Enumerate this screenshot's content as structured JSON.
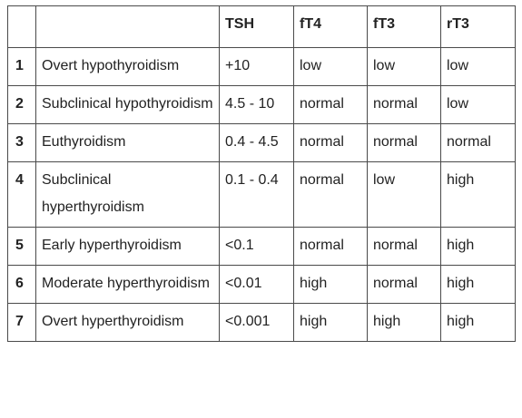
{
  "table": {
    "headers": [
      "",
      "",
      "TSH",
      "fT4",
      "fT3",
      "rT3"
    ],
    "rows": [
      {
        "num": "1",
        "condition": "Overt hypothyroidism",
        "tsh": "+10",
        "ft4": "low",
        "ft3": "low",
        "rt3": "low"
      },
      {
        "num": "2",
        "condition": "Subclinical hypothyroidism",
        "tsh": "4.5 - 10",
        "ft4": "normal",
        "ft3": "normal",
        "rt3": "low"
      },
      {
        "num": "3",
        "condition": "Euthyroidism",
        "tsh": "0.4 - 4.5",
        "ft4": "normal",
        "ft3": "normal",
        "rt3": "normal"
      },
      {
        "num": "4",
        "condition": "Subclinical hyperthyroidism",
        "tsh": "0.1 - 0.4",
        "ft4": "normal",
        "ft3": "low",
        "rt3": "high"
      },
      {
        "num": "5",
        "condition": "Early hyperthyroidism",
        "tsh": "<0.1",
        "ft4": "normal",
        "ft3": "normal",
        "rt3": "high"
      },
      {
        "num": "6",
        "condition": "Moderate hyperthyroidism",
        "tsh": "<0.01",
        "ft4": "high",
        "ft3": "normal",
        "rt3": "high"
      },
      {
        "num": "7",
        "condition": "Overt hyperthyroidism",
        "tsh": "<0.001",
        "ft4": "high",
        "ft3": "high",
        "rt3": "high"
      }
    ]
  }
}
